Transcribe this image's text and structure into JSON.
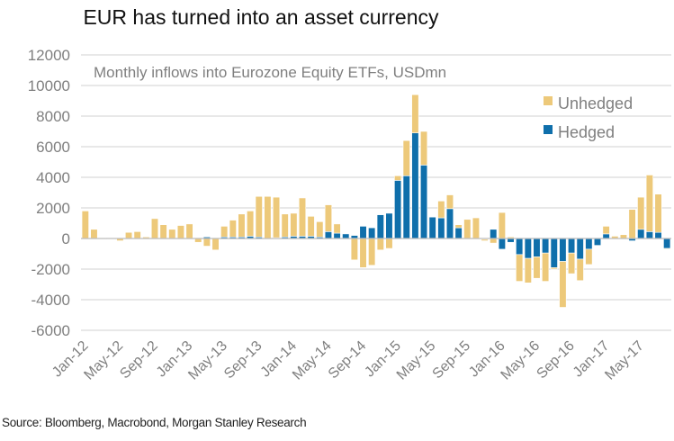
{
  "header": {
    "title": "EUR has turned into an asset currency"
  },
  "footer": {
    "source": "Source: Bloomberg, Macrobond, Morgan Stanley Research"
  },
  "chart_data": {
    "type": "bar",
    "stacked": true,
    "title": "EUR has turned into an asset currency",
    "subtitle": "Monthly inflows into Eurozone Equity ETFs, USDmn",
    "xlabel": "",
    "ylabel": "",
    "ylim": [
      -6000,
      12000
    ],
    "yticks": [
      12000,
      10000,
      8000,
      6000,
      4000,
      2000,
      0,
      -2000,
      -4000,
      -6000
    ],
    "ytick_labels": [
      "12000",
      "10000",
      "8000",
      "6000",
      "4000",
      "2000",
      "0",
      "-2000",
      "-4000",
      "-6000"
    ],
    "grid": true,
    "legend_position": "top-right",
    "xtick_labels": [
      "Jan-12",
      "May-12",
      "Sep-12",
      "Jan-13",
      "May-13",
      "Sep-13",
      "Jan-14",
      "May-14",
      "Sep-14",
      "Jan-15",
      "May-15",
      "Sep-15",
      "Jan-16",
      "May-16",
      "Sep-16",
      "Jan-17",
      "May-17"
    ],
    "categories": [
      "Jan-12",
      "Feb-12",
      "Mar-12",
      "Apr-12",
      "May-12",
      "Jun-12",
      "Jul-12",
      "Aug-12",
      "Sep-12",
      "Oct-12",
      "Nov-12",
      "Dec-12",
      "Jan-13",
      "Feb-13",
      "Mar-13",
      "Apr-13",
      "May-13",
      "Jun-13",
      "Jul-13",
      "Aug-13",
      "Sep-13",
      "Oct-13",
      "Nov-13",
      "Dec-13",
      "Jan-14",
      "Feb-14",
      "Mar-14",
      "Apr-14",
      "May-14",
      "Jun-14",
      "Jul-14",
      "Aug-14",
      "Sep-14",
      "Oct-14",
      "Nov-14",
      "Dec-14",
      "Jan-15",
      "Feb-15",
      "Mar-15",
      "Apr-15",
      "May-15",
      "Jun-15",
      "Jul-15",
      "Aug-15",
      "Sep-15",
      "Oct-15",
      "Nov-15",
      "Dec-15",
      "Jan-16",
      "Feb-16",
      "Mar-16",
      "Apr-16",
      "May-16",
      "Jun-16",
      "Jul-16",
      "Aug-16",
      "Sep-16",
      "Oct-16",
      "Nov-16",
      "Dec-16",
      "Jan-17",
      "Feb-17",
      "Mar-17",
      "Apr-17",
      "May-17",
      "Jun-17",
      "Jul-17",
      "Aug-17"
    ],
    "series": [
      {
        "name": "Hedged",
        "color": "#0f6fab",
        "values": [
          0,
          0,
          0,
          0,
          0,
          0,
          0,
          0,
          0,
          0,
          0,
          0,
          0,
          0,
          100,
          50,
          100,
          100,
          100,
          150,
          100,
          0,
          50,
          100,
          150,
          150,
          150,
          100,
          450,
          350,
          300,
          200,
          800,
          700,
          1550,
          1650,
          3800,
          4100,
          6900,
          4800,
          1400,
          1350,
          1950,
          700,
          0,
          0,
          -50,
          600,
          -700,
          -250,
          -1050,
          -1300,
          -1200,
          -950,
          -1900,
          -1500,
          -950,
          -1350,
          -700,
          -450,
          300,
          0,
          -50,
          -150,
          600,
          450,
          400,
          -650
        ]
      },
      {
        "name": "Unhedged",
        "color": "#edc97a",
        "values": [
          1800,
          600,
          50,
          -50,
          -150,
          400,
          450,
          100,
          1300,
          900,
          600,
          850,
          950,
          -250,
          -500,
          -750,
          700,
          1100,
          1500,
          1650,
          2650,
          2750,
          2650,
          1500,
          1500,
          2500,
          1300,
          1000,
          1750,
          600,
          0,
          -1400,
          -1900,
          -1750,
          -750,
          -650,
          300,
          2300,
          2500,
          2200,
          0,
          1100,
          900,
          200,
          1250,
          1350,
          -100,
          -300,
          1700,
          100,
          -1750,
          -1600,
          -1400,
          -1850,
          -100,
          -3000,
          -1350,
          -1400,
          -1000,
          0,
          500,
          150,
          250,
          1900,
          2100,
          3700,
          2500,
          -50
        ]
      }
    ]
  }
}
